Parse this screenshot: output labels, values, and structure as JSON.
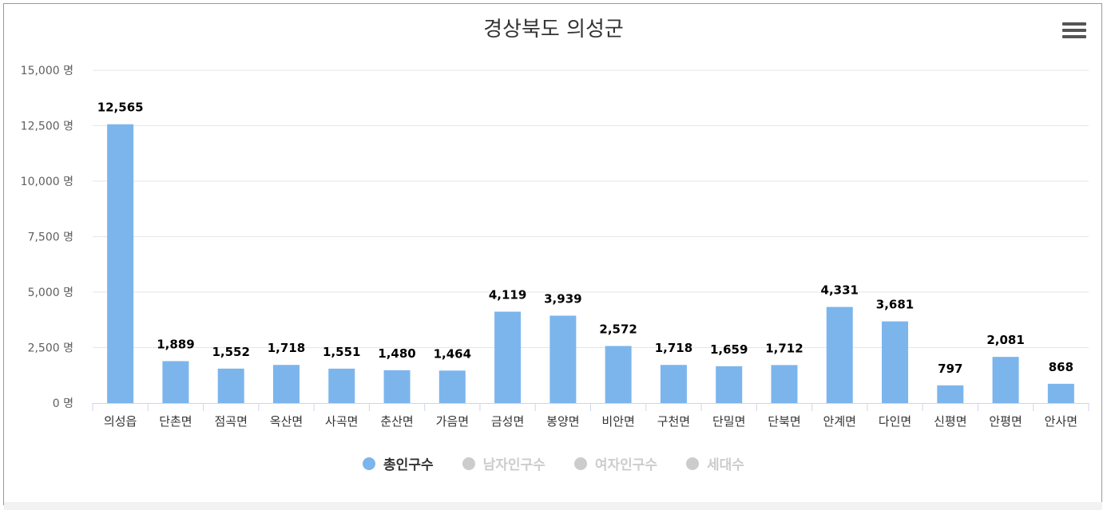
{
  "chart_data": {
    "type": "bar",
    "title": "경상북도 의성군",
    "categories": [
      "의성읍",
      "단촌면",
      "점곡면",
      "옥산면",
      "사곡면",
      "춘산면",
      "가음면",
      "금성면",
      "봉양면",
      "비안면",
      "구천면",
      "단밀면",
      "단북면",
      "안계면",
      "다인면",
      "신평면",
      "안평면",
      "안사면"
    ],
    "series": [
      {
        "name": "총인구수",
        "values": [
          12565,
          1889,
          1552,
          1718,
          1551,
          1480,
          1464,
          4119,
          3939,
          2572,
          1718,
          1659,
          1712,
          4331,
          3681,
          797,
          2081,
          868
        ],
        "color": "#7cb5ec"
      }
    ],
    "data_labels": [
      "12,565",
      "1,889",
      "1,552",
      "1,718",
      "1,551",
      "1,480",
      "1,464",
      "4,119",
      "3,939",
      "2,572",
      "1,718",
      "1,659",
      "1,712",
      "4,331",
      "3,681",
      "797",
      "2,081",
      "868"
    ],
    "y_ticks": [
      0,
      2500,
      5000,
      7500,
      10000,
      12500,
      15000
    ],
    "y_tick_labels": [
      "0 명",
      "2,500 명",
      "5,000 명",
      "7,500 명",
      "10,000 명",
      "12,500 명",
      "15,000 명"
    ],
    "ylim": [
      0,
      15000
    ],
    "grid": true,
    "legend_position": "bottom"
  },
  "legend": [
    {
      "label": "총인구수",
      "active": true,
      "dot_color": "#7cb5ec",
      "text_color": "#333333"
    },
    {
      "label": "남자인구수",
      "active": false,
      "dot_color": "#cccccc",
      "text_color": "#cccccc"
    },
    {
      "label": "여자인구수",
      "active": false,
      "dot_color": "#cccccc",
      "text_color": "#cccccc"
    },
    {
      "label": "세대수",
      "active": false,
      "dot_color": "#cccccc",
      "text_color": "#cccccc"
    }
  ],
  "menu_icon": "hamburger-menu-icon"
}
